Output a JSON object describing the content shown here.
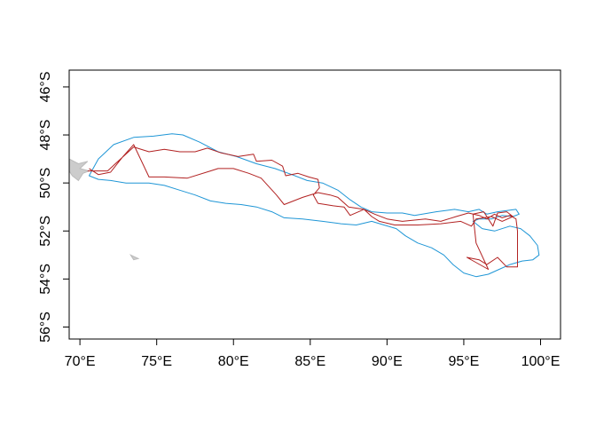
{
  "chart_data": {
    "type": "line",
    "title": "",
    "xlabel": "",
    "ylabel": "",
    "xlim": [
      69.3,
      101.3
    ],
    "ylim": [
      -56.5,
      -45.3
    ],
    "x_ticks": [
      {
        "value": 70,
        "label": "70°E"
      },
      {
        "value": 75,
        "label": "75°E"
      },
      {
        "value": 80,
        "label": "80°E"
      },
      {
        "value": 85,
        "label": "85°E"
      },
      {
        "value": 90,
        "label": "90°E"
      },
      {
        "value": 95,
        "label": "95°E"
      },
      {
        "value": 100,
        "label": "100°E"
      }
    ],
    "y_ticks": [
      {
        "value": -46,
        "label": "46°S"
      },
      {
        "value": -48,
        "label": "48°S"
      },
      {
        "value": -50,
        "label": "50°S"
      },
      {
        "value": -52,
        "label": "52°S"
      },
      {
        "value": -54,
        "label": "54°S"
      },
      {
        "value": -56,
        "label": "56°S"
      }
    ],
    "grid": false,
    "legend": "none",
    "land": [
      {
        "color": "#cccccc",
        "points": [
          [
            69.3,
            -49.0
          ],
          [
            69.9,
            -49.2
          ],
          [
            70.5,
            -49.1
          ],
          [
            70.0,
            -49.4
          ],
          [
            70.6,
            -49.5
          ],
          [
            70.2,
            -49.6
          ],
          [
            69.9,
            -49.9
          ],
          [
            69.5,
            -49.7
          ],
          [
            69.3,
            -49.5
          ]
        ]
      },
      {
        "color": "#cccccc",
        "points": [
          [
            73.3,
            -53.0
          ],
          [
            73.8,
            -53.15
          ],
          [
            73.5,
            -53.2
          ]
        ]
      }
    ],
    "series": [
      {
        "color": "#1f96d6",
        "closed": true,
        "points": [
          [
            70.6,
            -49.7
          ],
          [
            71.2,
            -49.0
          ],
          [
            72.2,
            -48.4
          ],
          [
            73.5,
            -48.1
          ],
          [
            74.8,
            -48.05
          ],
          [
            76.0,
            -47.95
          ],
          [
            76.7,
            -48.0
          ],
          [
            77.8,
            -48.3
          ],
          [
            79.0,
            -48.7
          ],
          [
            80.2,
            -48.9
          ],
          [
            81.5,
            -49.2
          ],
          [
            82.7,
            -49.4
          ],
          [
            83.8,
            -49.65
          ],
          [
            84.8,
            -49.9
          ],
          [
            85.8,
            -50.0
          ],
          [
            86.8,
            -50.3
          ],
          [
            87.6,
            -50.7
          ],
          [
            88.3,
            -51.0
          ],
          [
            89.0,
            -51.2
          ],
          [
            90.0,
            -51.25
          ],
          [
            91.0,
            -51.25
          ],
          [
            91.8,
            -51.35
          ],
          [
            93.2,
            -51.2
          ],
          [
            94.4,
            -51.1
          ],
          [
            95.3,
            -51.2
          ],
          [
            96.0,
            -51.1
          ],
          [
            96.5,
            -51.3
          ],
          [
            97.2,
            -51.2
          ],
          [
            97.8,
            -51.15
          ],
          [
            98.4,
            -51.1
          ],
          [
            98.6,
            -51.3
          ],
          [
            98.2,
            -51.4
          ],
          [
            97.5,
            -51.35
          ],
          [
            96.8,
            -51.5
          ],
          [
            96.0,
            -51.5
          ],
          [
            95.6,
            -51.6
          ],
          [
            96.2,
            -51.9
          ],
          [
            97.0,
            -52.0
          ],
          [
            98.0,
            -51.8
          ],
          [
            98.7,
            -51.9
          ],
          [
            99.3,
            -52.2
          ],
          [
            99.8,
            -52.6
          ],
          [
            99.9,
            -53.0
          ],
          [
            99.5,
            -53.2
          ],
          [
            98.8,
            -53.25
          ],
          [
            98.0,
            -53.4
          ],
          [
            97.3,
            -53.6
          ],
          [
            96.6,
            -53.8
          ],
          [
            95.8,
            -53.9
          ],
          [
            95.0,
            -53.75
          ],
          [
            94.3,
            -53.4
          ],
          [
            93.7,
            -53.0
          ],
          [
            92.9,
            -52.7
          ],
          [
            92.0,
            -52.5
          ],
          [
            91.2,
            -52.2
          ],
          [
            90.6,
            -51.9
          ],
          [
            89.8,
            -51.75
          ],
          [
            89.0,
            -51.6
          ],
          [
            88.0,
            -51.75
          ],
          [
            87.0,
            -51.7
          ],
          [
            85.8,
            -51.6
          ],
          [
            84.5,
            -51.5
          ],
          [
            83.3,
            -51.45
          ],
          [
            82.5,
            -51.2
          ],
          [
            81.5,
            -51.0
          ],
          [
            80.5,
            -50.9
          ],
          [
            79.5,
            -50.85
          ],
          [
            78.5,
            -50.75
          ],
          [
            77.5,
            -50.5
          ],
          [
            76.5,
            -50.3
          ],
          [
            75.5,
            -50.1
          ],
          [
            74.5,
            -50.0
          ],
          [
            73.0,
            -50.0
          ],
          [
            72.0,
            -49.9
          ],
          [
            71.2,
            -49.85
          ]
        ]
      },
      {
        "color": "#b22222",
        "closed": false,
        "points": [
          [
            70.5,
            -49.5
          ],
          [
            71.8,
            -49.5
          ],
          [
            73.5,
            -48.5
          ],
          [
            74.5,
            -48.7
          ],
          [
            75.5,
            -48.6
          ],
          [
            76.5,
            -48.7
          ],
          [
            77.5,
            -48.7
          ],
          [
            78.3,
            -48.55
          ],
          [
            79.2,
            -48.75
          ],
          [
            80.3,
            -48.9
          ],
          [
            81.3,
            -48.8
          ],
          [
            81.5,
            -49.1
          ],
          [
            82.5,
            -49.05
          ],
          [
            83.2,
            -49.3
          ],
          [
            83.4,
            -49.7
          ],
          [
            84.2,
            -49.6
          ],
          [
            84.9,
            -49.75
          ],
          [
            85.5,
            -49.85
          ],
          [
            85.6,
            -50.2
          ],
          [
            85.2,
            -50.5
          ],
          [
            85.5,
            -50.85
          ],
          [
            86.5,
            -50.95
          ],
          [
            87.2,
            -51.0
          ],
          [
            87.6,
            -51.35
          ],
          [
            88.5,
            -51.1
          ],
          [
            89.2,
            -51.3
          ],
          [
            90.0,
            -51.5
          ],
          [
            90.5,
            -51.55
          ],
          [
            91.0,
            -51.6
          ],
          [
            92.5,
            -51.5
          ],
          [
            93.5,
            -51.6
          ],
          [
            94.5,
            -51.4
          ],
          [
            95.3,
            -51.25
          ],
          [
            96.0,
            -51.35
          ],
          [
            96.5,
            -51.5
          ],
          [
            97.0,
            -51.3
          ],
          [
            97.5,
            -51.45
          ],
          [
            98.0,
            -51.35
          ],
          [
            98.4,
            -51.5
          ],
          [
            98.5,
            -52.0
          ],
          [
            98.5,
            -52.5
          ],
          [
            98.5,
            -53.1
          ],
          [
            98.5,
            -53.5
          ],
          [
            97.8,
            -53.5
          ],
          [
            97.2,
            -53.1
          ],
          [
            96.5,
            -53.4
          ],
          [
            96.0,
            -53.2
          ],
          [
            95.2,
            -53.1
          ],
          [
            96.6,
            -53.6
          ],
          [
            95.8,
            -52.5
          ],
          [
            95.6,
            -51.3
          ],
          [
            96.3,
            -51.2
          ],
          [
            96.9,
            -51.8
          ],
          [
            97.2,
            -51.25
          ],
          [
            97.8,
            -51.2
          ],
          [
            98.2,
            -51.4
          ],
          [
            97.5,
            -51.6
          ],
          [
            96.8,
            -51.4
          ],
          [
            95.8,
            -51.5
          ],
          [
            95.5,
            -51.8
          ],
          [
            94.8,
            -51.6
          ],
          [
            93.5,
            -51.7
          ],
          [
            92.0,
            -51.75
          ],
          [
            90.5,
            -51.75
          ],
          [
            89.5,
            -51.6
          ],
          [
            89.0,
            -51.4
          ],
          [
            88.5,
            -51.1
          ],
          [
            87.5,
            -51.0
          ],
          [
            86.8,
            -50.6
          ],
          [
            86.3,
            -50.5
          ],
          [
            85.5,
            -50.4
          ],
          [
            84.5,
            -50.6
          ],
          [
            83.3,
            -50.9
          ],
          [
            82.8,
            -50.5
          ],
          [
            81.8,
            -49.8
          ],
          [
            81.0,
            -49.6
          ],
          [
            80.0,
            -49.4
          ],
          [
            79.0,
            -49.4
          ],
          [
            78.5,
            -49.5
          ],
          [
            77.0,
            -49.8
          ],
          [
            75.5,
            -49.75
          ],
          [
            74.5,
            -49.75
          ],
          [
            73.5,
            -48.4
          ],
          [
            72.8,
            -48.9
          ],
          [
            72.0,
            -49.55
          ],
          [
            71.2,
            -49.65
          ],
          [
            70.6,
            -49.4
          ]
        ]
      }
    ]
  }
}
